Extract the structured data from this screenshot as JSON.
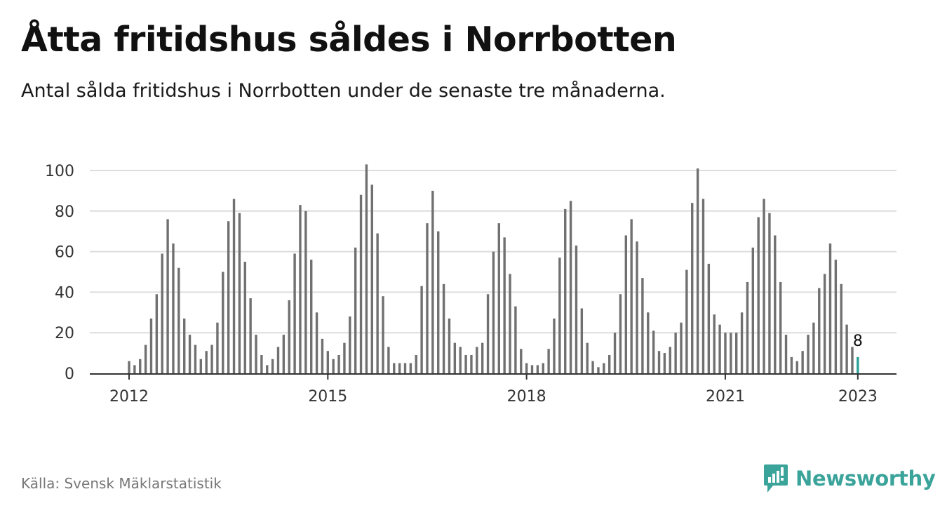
{
  "header": {
    "title": "Åtta fritidshus såldes i Norrbotten",
    "subtitle": "Antal sålda fritidshus i Norrbotten under de senaste tre månaderna."
  },
  "footer": {
    "source": "Källa: Svensk Mäklarstatistik",
    "brand": "Newsworthy"
  },
  "colors": {
    "bar": "#707070",
    "highlight": "#2aa198",
    "grid": "#dddddd",
    "axis": "#333333",
    "brand": "#3aa39a"
  },
  "chart_data": {
    "type": "bar",
    "title": "Åtta fritidshus såldes i Norrbotten",
    "xlabel": "",
    "ylabel": "",
    "ylim": [
      0,
      100
    ],
    "yticks": [
      0,
      20,
      40,
      60,
      80,
      100
    ],
    "start": "2012-01",
    "xticks": [
      {
        "label": "2012",
        "index": 0
      },
      {
        "label": "2015",
        "index": 36
      },
      {
        "label": "2018",
        "index": 72
      },
      {
        "label": "2021",
        "index": 108
      },
      {
        "label": "2023",
        "index": 132
      }
    ],
    "values": [
      6,
      4,
      7,
      14,
      27,
      39,
      59,
      76,
      64,
      52,
      27,
      19,
      14,
      7,
      11,
      14,
      25,
      50,
      75,
      86,
      79,
      55,
      37,
      19,
      9,
      4,
      7,
      13,
      19,
      36,
      59,
      83,
      80,
      56,
      30,
      17,
      11,
      7,
      9,
      15,
      28,
      62,
      88,
      103,
      93,
      69,
      38,
      13,
      5,
      5,
      5,
      5,
      9,
      43,
      74,
      90,
      70,
      44,
      27,
      15,
      13,
      9,
      9,
      13,
      15,
      39,
      60,
      74,
      67,
      49,
      33,
      12,
      5,
      4,
      4,
      5,
      12,
      27,
      57,
      81,
      85,
      63,
      32,
      15,
      6,
      3,
      5,
      9,
      20,
      39,
      68,
      76,
      65,
      47,
      30,
      21,
      11,
      10,
      13,
      20,
      25,
      51,
      84,
      101,
      86,
      54,
      29,
      24,
      20,
      20,
      20,
      30,
      45,
      62,
      77,
      86,
      79,
      68,
      45,
      19,
      8,
      6,
      11,
      19,
      25,
      42,
      49,
      64,
      56,
      44,
      24,
      13,
      8
    ],
    "highlight_index": 132,
    "annotation": {
      "index": 132,
      "text": "8"
    }
  }
}
